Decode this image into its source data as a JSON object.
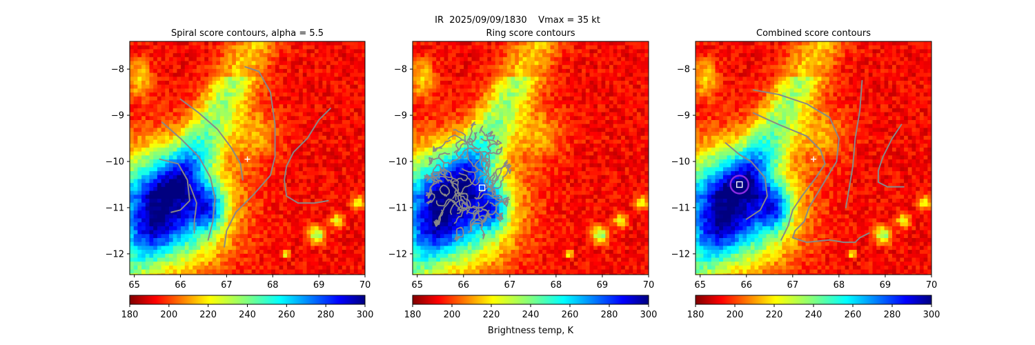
{
  "figure": {
    "suptitle": "IR  2025/09/09/1830    Vmax = 35 kt",
    "colorbar_label": "Brightness temp, K"
  },
  "chart_data": [
    {
      "type": "heatmap",
      "title": "Spiral score contours, alpha =  5.5",
      "xlim": [
        64.9,
        70.0
      ],
      "ylim": [
        -12.45,
        -7.4
      ],
      "xticks": [
        65,
        66,
        67,
        68,
        69,
        70
      ],
      "yticks": [
        -8,
        -9,
        -10,
        -11,
        -12
      ],
      "colormap": "jet",
      "color_range": [
        180,
        300
      ],
      "colorbar_ticks": [
        180,
        200,
        220,
        240,
        260,
        280,
        300
      ],
      "contour_color": "#888888",
      "contours": [
        [
          [
            66.0,
            -8.65
          ],
          [
            66.4,
            -8.95
          ],
          [
            66.8,
            -9.3
          ],
          [
            67.1,
            -9.7
          ],
          [
            67.3,
            -10.05
          ],
          [
            67.35,
            -10.4
          ]
        ],
        [
          [
            65.6,
            -9.15
          ],
          [
            66.0,
            -9.5
          ],
          [
            66.4,
            -9.9
          ],
          [
            66.65,
            -10.35
          ],
          [
            66.75,
            -10.8
          ],
          [
            66.7,
            -11.3
          ],
          [
            66.6,
            -11.7
          ]
        ],
        [
          [
            65.55,
            -9.95
          ],
          [
            65.95,
            -10.05
          ],
          [
            66.15,
            -10.4
          ],
          [
            66.2,
            -10.85
          ],
          [
            66.0,
            -11.05
          ],
          [
            65.8,
            -11.1
          ]
        ],
        [
          [
            66.2,
            -10.5
          ],
          [
            66.35,
            -10.9
          ],
          [
            66.3,
            -11.3
          ],
          [
            66.3,
            -11.55
          ]
        ],
        [
          [
            67.4,
            -7.95
          ],
          [
            67.7,
            -8.05
          ],
          [
            67.95,
            -8.5
          ],
          [
            68.05,
            -9.2
          ],
          [
            68.05,
            -9.9
          ],
          [
            67.95,
            -10.3
          ],
          [
            67.6,
            -10.7
          ],
          [
            67.2,
            -11.1
          ],
          [
            67.0,
            -11.5
          ],
          [
            66.95,
            -11.85
          ]
        ],
        [
          [
            69.25,
            -8.85
          ],
          [
            69.0,
            -9.1
          ],
          [
            68.75,
            -9.5
          ],
          [
            68.45,
            -9.8
          ],
          [
            68.3,
            -10.1
          ],
          [
            68.25,
            -10.4
          ],
          [
            68.3,
            -10.75
          ],
          [
            68.55,
            -10.9
          ],
          [
            68.9,
            -10.9
          ],
          [
            69.2,
            -10.85
          ]
        ]
      ],
      "markers": [
        {
          "symbol": "plus",
          "x": 67.45,
          "y": -9.95,
          "color": "#ffffff"
        }
      ]
    },
    {
      "type": "heatmap",
      "title": "Ring score contours",
      "xlim": [
        64.9,
        70.0
      ],
      "ylim": [
        -12.45,
        -7.4
      ],
      "xticks": [
        65,
        66,
        67,
        68,
        69,
        70
      ],
      "yticks": [
        -8,
        -9,
        -10,
        -11,
        -12
      ],
      "colormap": "jet",
      "color_range": [
        180,
        300
      ],
      "colorbar_ticks": [
        180,
        200,
        220,
        240,
        260,
        280,
        300
      ],
      "contour_color": "#888888",
      "ring_region": {
        "center": [
          66.1,
          -10.45
        ],
        "rx": 0.85,
        "ry": 1.25
      },
      "markers": [
        {
          "symbol": "square",
          "x": 66.4,
          "y": -10.57,
          "color": "#ffffff"
        }
      ]
    },
    {
      "type": "heatmap",
      "title": "Combined score contours",
      "xlim": [
        64.9,
        70.0
      ],
      "ylim": [
        -12.45,
        -7.4
      ],
      "xticks": [
        65,
        66,
        67,
        68,
        69,
        70
      ],
      "yticks": [
        -8,
        -9,
        -10,
        -11,
        -12
      ],
      "colormap": "jet",
      "color_range": [
        180,
        300
      ],
      "colorbar_ticks": [
        180,
        200,
        220,
        240,
        260,
        280,
        300
      ],
      "contour_color": "#888888",
      "contours": [
        [
          [
            66.15,
            -8.95
          ],
          [
            66.7,
            -9.2
          ],
          [
            67.3,
            -9.45
          ],
          [
            67.6,
            -9.75
          ],
          [
            67.7,
            -10.05
          ],
          [
            67.5,
            -10.35
          ],
          [
            67.2,
            -10.75
          ],
          [
            67.0,
            -11.05
          ],
          [
            66.9,
            -11.4
          ],
          [
            66.75,
            -11.7
          ]
        ],
        [
          [
            65.55,
            -9.6
          ],
          [
            65.85,
            -9.85
          ],
          [
            66.1,
            -10.0
          ],
          [
            66.4,
            -10.35
          ],
          [
            66.45,
            -10.75
          ],
          [
            66.3,
            -11.05
          ],
          [
            66.0,
            -11.25
          ]
        ],
        [
          [
            66.15,
            -8.45
          ],
          [
            66.7,
            -8.55
          ],
          [
            67.3,
            -8.75
          ],
          [
            67.8,
            -9.05
          ],
          [
            68.0,
            -9.5
          ],
          [
            67.95,
            -10.0
          ],
          [
            67.65,
            -10.5
          ],
          [
            67.35,
            -11.0
          ],
          [
            67.25,
            -11.3
          ],
          [
            67.05,
            -11.5
          ],
          [
            67.0,
            -11.65
          ],
          [
            67.3,
            -11.75
          ],
          [
            67.8,
            -11.7
          ],
          [
            68.1,
            -11.75
          ],
          [
            68.35,
            -11.75
          ],
          [
            68.45,
            -11.65
          ],
          [
            68.55,
            -11.6
          ],
          [
            68.65,
            -11.55
          ]
        ],
        [
          [
            68.5,
            -8.25
          ],
          [
            68.45,
            -8.9
          ],
          [
            68.35,
            -9.5
          ],
          [
            68.3,
            -10.1
          ],
          [
            68.2,
            -10.7
          ],
          [
            68.15,
            -11.0
          ]
        ],
        [
          [
            69.35,
            -9.2
          ],
          [
            69.15,
            -9.5
          ],
          [
            68.95,
            -9.9
          ],
          [
            68.85,
            -10.2
          ],
          [
            68.85,
            -10.45
          ],
          [
            69.05,
            -10.55
          ],
          [
            69.4,
            -10.55
          ]
        ]
      ],
      "markers": [
        {
          "symbol": "plus",
          "x": 67.45,
          "y": -9.95,
          "color": "#ffffff"
        },
        {
          "symbol": "circle",
          "x": 65.85,
          "y": -10.5,
          "color": "#8a2be2"
        },
        {
          "symbol": "square",
          "x": 65.85,
          "y": -10.5,
          "color": "#ffffff"
        }
      ]
    }
  ]
}
